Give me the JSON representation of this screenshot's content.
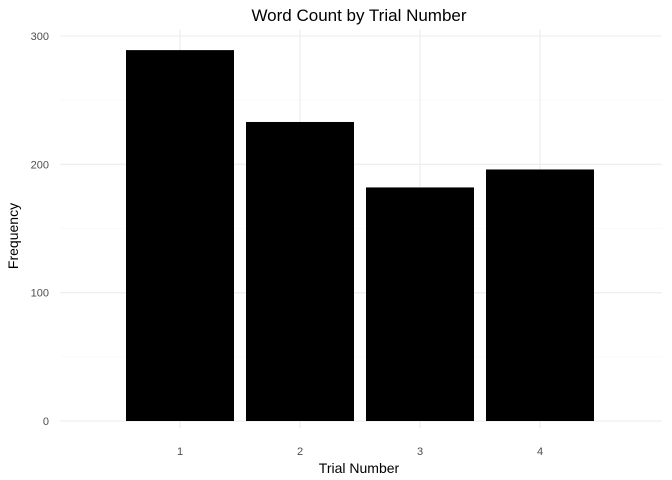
{
  "chart_data": {
    "type": "bar",
    "title": "Word Count by Trial Number",
    "xlabel": "Trial Number",
    "ylabel": "Frequency",
    "categories": [
      "1",
      "2",
      "3",
      "4"
    ],
    "values": [
      289,
      233,
      182,
      196
    ],
    "ylim": [
      0,
      300
    ],
    "yticks": [
      0,
      100,
      200,
      300
    ],
    "y_minor_ticks": [
      50,
      150,
      250
    ],
    "grid": true,
    "legend": "none",
    "colors": {
      "bar": "#000000",
      "grid_major": "#ebebeb",
      "grid_minor": "#f5f5f5"
    }
  }
}
